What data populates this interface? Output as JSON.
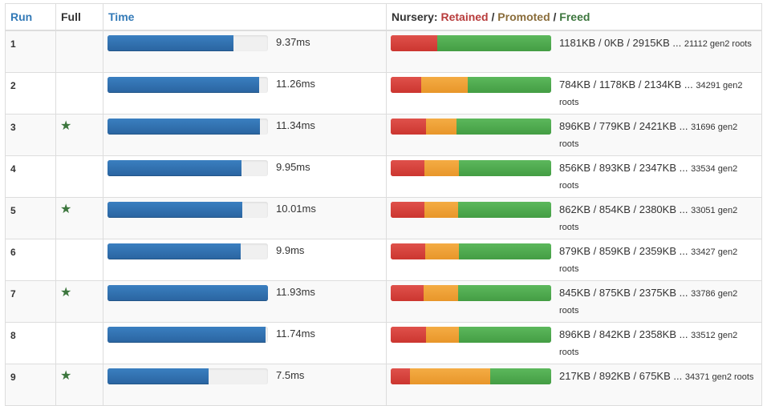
{
  "headers": {
    "run": "Run",
    "full": "Full",
    "time": "Time",
    "nursery": "Nursery:",
    "slash": "/",
    "retained": "Retained",
    "promoted": "Promoted",
    "freed": "Freed"
  },
  "colors": {
    "retained": "#d9403a",
    "promoted": "#f0a030",
    "freed": "#4cae4c",
    "time_bar": "#2f6fab",
    "link_header": "#337ab7"
  },
  "icons": {
    "full_marker": "star-icon",
    "full_glyph": "★"
  },
  "time_scale_ms": 11.93,
  "rows": [
    {
      "run": "1",
      "full": false,
      "time_ms": 9.37,
      "time_label": "9.37ms",
      "retained_kb": 1181,
      "promoted_kb": 0,
      "freed_kb": 2915,
      "summary": "1181KB / 0KB / 2915KB ...",
      "roots": "21112 gen2 roots"
    },
    {
      "run": "2",
      "full": false,
      "time_ms": 11.26,
      "time_label": "11.26ms",
      "retained_kb": 784,
      "promoted_kb": 1178,
      "freed_kb": 2134,
      "summary": "784KB / 1178KB / 2134KB ...",
      "roots": "34291 gen2 roots"
    },
    {
      "run": "3",
      "full": true,
      "time_ms": 11.34,
      "time_label": "11.34ms",
      "retained_kb": 896,
      "promoted_kb": 779,
      "freed_kb": 2421,
      "summary": "896KB / 779KB / 2421KB ...",
      "roots": "31696 gen2 roots"
    },
    {
      "run": "4",
      "full": false,
      "time_ms": 9.95,
      "time_label": "9.95ms",
      "retained_kb": 856,
      "promoted_kb": 893,
      "freed_kb": 2347,
      "summary": "856KB / 893KB / 2347KB ...",
      "roots": "33534 gen2 roots"
    },
    {
      "run": "5",
      "full": true,
      "time_ms": 10.01,
      "time_label": "10.01ms",
      "retained_kb": 862,
      "promoted_kb": 854,
      "freed_kb": 2380,
      "summary": "862KB / 854KB / 2380KB ...",
      "roots": "33051 gen2 roots"
    },
    {
      "run": "6",
      "full": false,
      "time_ms": 9.9,
      "time_label": "9.9ms",
      "retained_kb": 879,
      "promoted_kb": 859,
      "freed_kb": 2359,
      "summary": "879KB / 859KB / 2359KB ...",
      "roots": "33427 gen2 roots"
    },
    {
      "run": "7",
      "full": true,
      "time_ms": 11.93,
      "time_label": "11.93ms",
      "retained_kb": 845,
      "promoted_kb": 875,
      "freed_kb": 2375,
      "summary": "845KB / 875KB / 2375KB ...",
      "roots": "33786 gen2 roots"
    },
    {
      "run": "8",
      "full": false,
      "time_ms": 11.74,
      "time_label": "11.74ms",
      "retained_kb": 896,
      "promoted_kb": 842,
      "freed_kb": 2358,
      "summary": "896KB / 842KB / 2358KB ...",
      "roots": "33512 gen2 roots"
    },
    {
      "run": "9",
      "full": true,
      "time_ms": 7.5,
      "time_label": "7.5ms",
      "retained_kb": 217,
      "promoted_kb": 892,
      "freed_kb": 675,
      "summary": "217KB / 892KB / 675KB ...",
      "roots": "34371 gen2 roots"
    }
  ]
}
